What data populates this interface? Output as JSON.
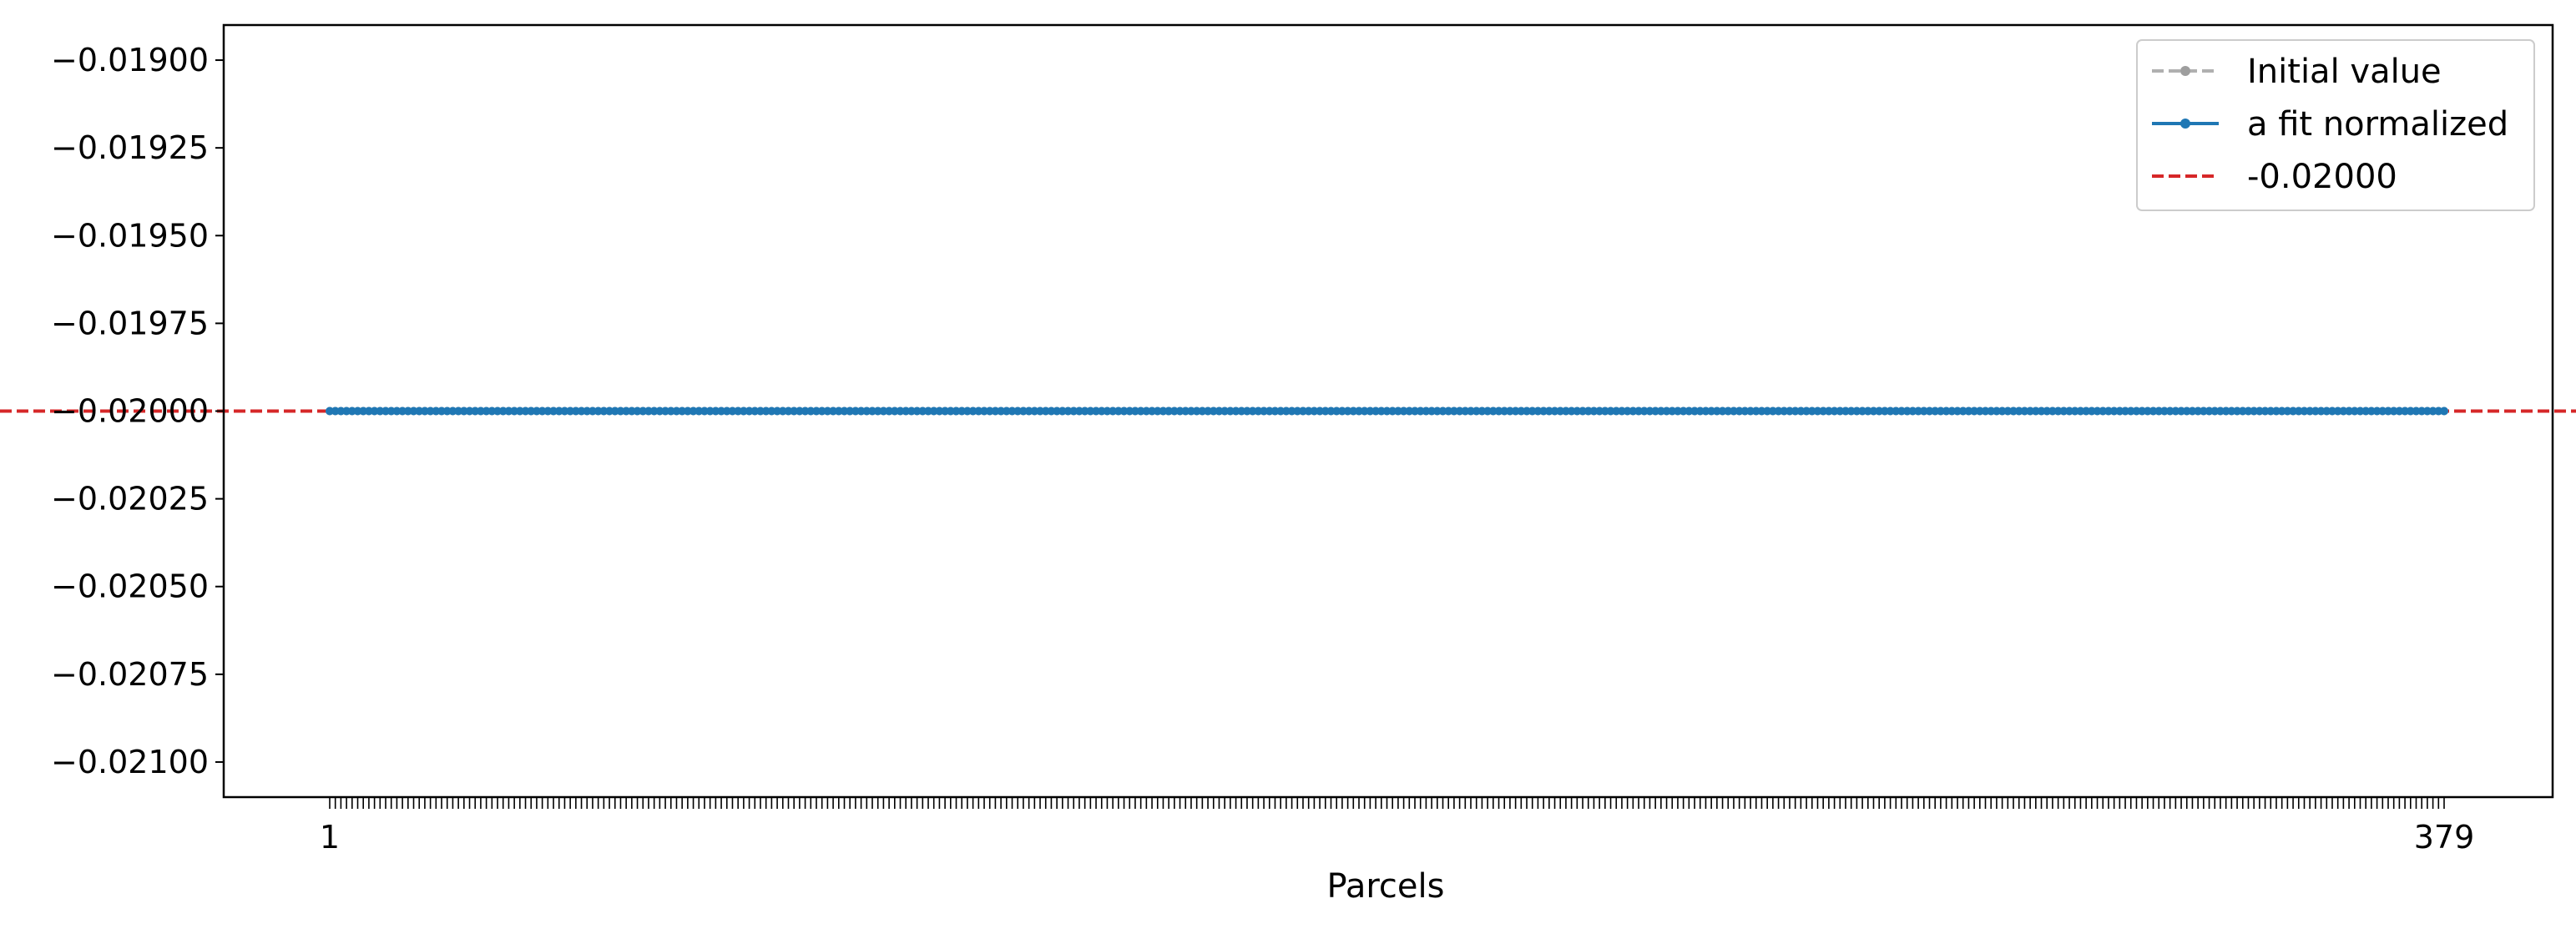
{
  "chart_data": {
    "type": "line",
    "title": "",
    "xlabel": "Parcels",
    "ylabel": "",
    "x_range": [
      1,
      379
    ],
    "x_tick_labels": [
      "1",
      "379"
    ],
    "ylim": [
      -0.0211,
      -0.0189
    ],
    "y_ticks": [
      -0.019,
      -0.01925,
      -0.0195,
      -0.01975,
      -0.02,
      -0.02025,
      -0.0205,
      -0.02075,
      -0.021
    ],
    "y_tick_labels": [
      "−0.01900",
      "−0.01925",
      "−0.01950",
      "−0.01975",
      "−0.02000",
      "−0.02025",
      "−0.02050",
      "−0.02075",
      "−0.02100"
    ],
    "grid": false,
    "legend_position": "top-right",
    "series": [
      {
        "name": "Initial value",
        "style": "dashed-with-markers",
        "color": "#b0b0b0",
        "constant_value": -0.02,
        "count": 379
      },
      {
        "name": "a fit normalized",
        "style": "solid-with-markers",
        "color": "#1f77b4",
        "constant_value": -0.02,
        "count": 379
      }
    ],
    "reference_line": {
      "name": "-0.02000",
      "value": -0.02,
      "style": "dashed",
      "color": "#d62728"
    }
  }
}
